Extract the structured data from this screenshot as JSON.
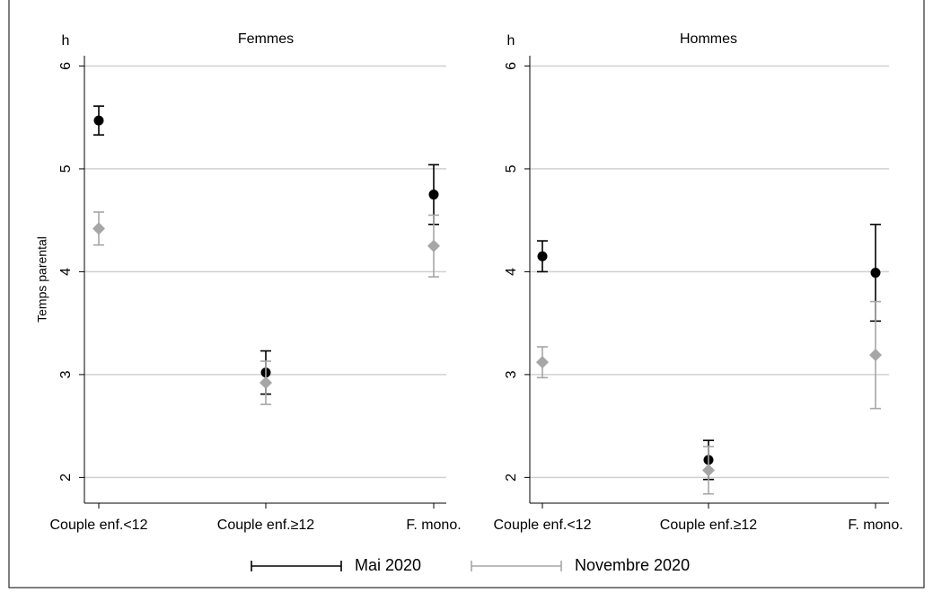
{
  "chart_data": [
    {
      "type": "errorbar",
      "title": "Femmes",
      "y_unit": "h",
      "ylabel": "Temps parental",
      "categories": [
        "Couple enf.<12",
        "Couple enf.≥12",
        "F. mono."
      ],
      "ylim": [
        1.75,
        6.1
      ],
      "yticks": [
        2,
        3,
        4,
        5,
        6
      ],
      "grid": true,
      "series": [
        {
          "name": "Mai 2020",
          "color": "#000000",
          "marker": "circle",
          "values": [
            5.47,
            3.02,
            4.75
          ],
          "errors": [
            0.14,
            0.21,
            0.29
          ]
        },
        {
          "name": "Novembre 2020",
          "color": "#a6a6a6",
          "marker": "diamond",
          "values": [
            4.42,
            2.92,
            4.25
          ],
          "errors": [
            0.16,
            0.21,
            0.3
          ]
        }
      ]
    },
    {
      "type": "errorbar",
      "title": "Hommes",
      "y_unit": "h",
      "categories": [
        "Couple enf.<12",
        "Couple enf.≥12",
        "F. mono."
      ],
      "ylim": [
        1.75,
        6.1
      ],
      "yticks": [
        2,
        3,
        4,
        5,
        6
      ],
      "grid": true,
      "series": [
        {
          "color": "#000000",
          "marker": "circle",
          "values": [
            4.15,
            2.17,
            3.99
          ],
          "errors": [
            0.15,
            0.19,
            0.47
          ]
        },
        {
          "color": "#a6a6a6",
          "marker": "diamond",
          "values": [
            3.12,
            2.07,
            3.19
          ],
          "errors": [
            0.15,
            0.23,
            0.52
          ]
        }
      ]
    }
  ]
}
